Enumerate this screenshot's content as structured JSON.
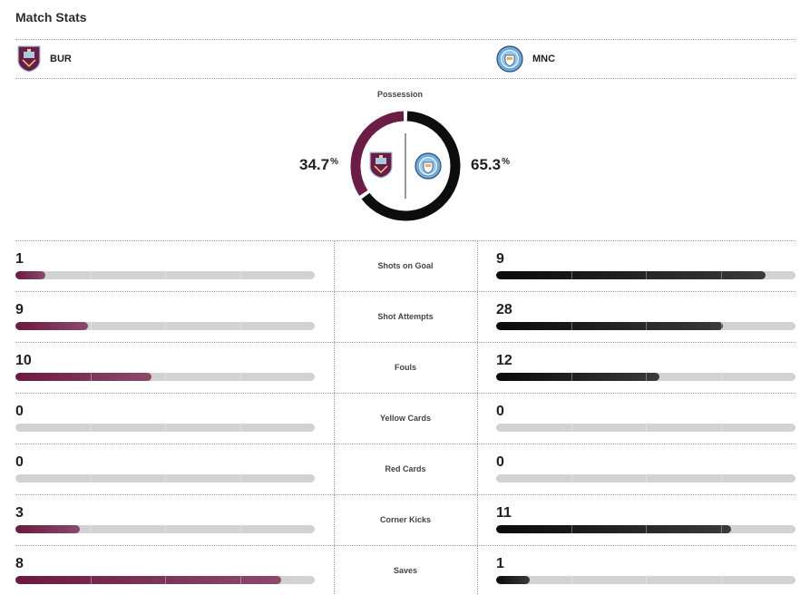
{
  "header": {
    "title": "Match Stats"
  },
  "teams": {
    "home": {
      "abbr": "BUR",
      "crest": "burnley-crest-icon",
      "color": "#6c1d45"
    },
    "away": {
      "abbr": "MNC",
      "crest": "man-city-crest-icon",
      "color": "#111111"
    }
  },
  "possession": {
    "label": "Possession",
    "home_value": "34.7",
    "away_value": "65.3",
    "unit": "%",
    "home_fraction": 0.347,
    "away_fraction": 0.653
  },
  "stats": [
    {
      "label": "Shots on Goal",
      "home": "1",
      "away": "9"
    },
    {
      "label": "Shot Attempts",
      "home": "9",
      "away": "28"
    },
    {
      "label": "Fouls",
      "home": "10",
      "away": "12"
    },
    {
      "label": "Yellow Cards",
      "home": "0",
      "away": "0"
    },
    {
      "label": "Red Cards",
      "home": "0",
      "away": "0"
    },
    {
      "label": "Corner Kicks",
      "home": "3",
      "away": "11"
    },
    {
      "label": "Saves",
      "home": "8",
      "away": "1"
    }
  ]
}
